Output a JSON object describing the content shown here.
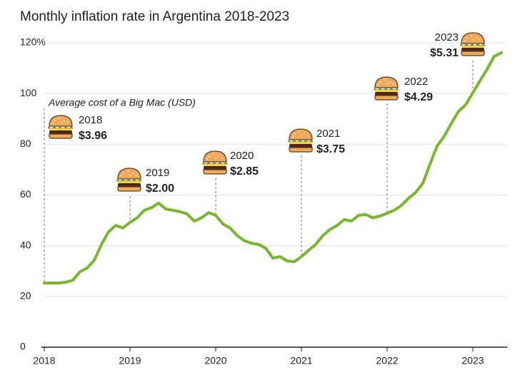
{
  "chart_data": {
    "type": "line",
    "title": "Monthly inflation rate in Argentina 2018-2023",
    "note": "Average cost of a Big Mac (USD)",
    "x": [
      2018,
      2018.083,
      2018.167,
      2018.25,
      2018.333,
      2018.417,
      2018.5,
      2018.583,
      2018.667,
      2018.75,
      2018.833,
      2018.917,
      2019,
      2019.083,
      2019.167,
      2019.25,
      2019.333,
      2019.417,
      2019.5,
      2019.583,
      2019.667,
      2019.75,
      2019.833,
      2019.917,
      2020,
      2020.083,
      2020.167,
      2020.25,
      2020.333,
      2020.417,
      2020.5,
      2020.583,
      2020.667,
      2020.75,
      2020.833,
      2020.917,
      2021,
      2021.083,
      2021.167,
      2021.25,
      2021.333,
      2021.417,
      2021.5,
      2021.583,
      2021.667,
      2021.75,
      2021.833,
      2021.917,
      2022,
      2022.083,
      2022.167,
      2022.25,
      2022.333,
      2022.417,
      2022.5,
      2022.583,
      2022.667,
      2022.75,
      2022.833,
      2022.917,
      2023,
      2023.083,
      2023.167,
      2023.25,
      2023.333
    ],
    "series": [
      {
        "name": "Monthly inflation rate",
        "color": "#78b82a",
        "values": [
          25.3,
          25.3,
          25.3,
          25.6,
          26.4,
          29.8,
          31.2,
          34.3,
          40.5,
          45.5,
          48,
          47,
          49.2,
          51,
          54,
          55,
          56.8,
          54.5,
          54,
          53.4,
          52.5,
          49.7,
          51,
          53,
          52,
          48.6,
          47,
          44,
          42,
          41,
          40.5,
          39,
          35.1,
          35.7,
          34,
          33.7,
          35.7,
          38.2,
          40.5,
          44,
          46.4,
          48,
          50.3,
          49.7,
          52,
          52.3,
          51,
          51.7,
          52.8,
          54,
          55.9,
          58.7,
          61,
          64.6,
          72.2,
          79.3,
          83.2,
          88.3,
          93,
          95.6,
          100.3,
          105,
          109.6,
          114.7,
          116.1
        ]
      }
    ],
    "xlim": [
      2018,
      2023.4
    ],
    "xticks": [
      2018,
      2019,
      2020,
      2021,
      2022,
      2023
    ],
    "ylim": [
      0,
      120
    ],
    "yticks": [
      0,
      20,
      40,
      60,
      80,
      100,
      {
        "value": 120,
        "label": "120%"
      }
    ],
    "grid": true,
    "annotations": [
      {
        "year": "2018",
        "price": "$3.96",
        "x": 2018
      },
      {
        "year": "2019",
        "price": "$2.00",
        "x": 2019
      },
      {
        "year": "2020",
        "price": "$2.85",
        "x": 2020
      },
      {
        "year": "2021",
        "price": "$3.75",
        "x": 2021
      },
      {
        "year": "2022",
        "price": "$4.29",
        "x": 2022
      },
      {
        "year": "2023",
        "price": "$5.31",
        "x": 2023
      }
    ]
  }
}
